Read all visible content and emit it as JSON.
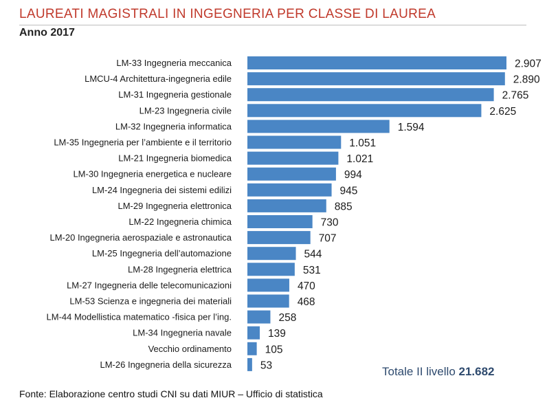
{
  "header": {
    "title": "LAUREATI MAGISTRALI IN INGEGNERIA PER CLASSE DI LAUREA",
    "subtitle": "Anno 2017"
  },
  "total": {
    "label": "Totale II livello",
    "value": "21.682"
  },
  "footer": {
    "source": "Fonte: Elaborazione centro studi CNI su dati MIUR – Ufficio di statistica"
  },
  "colors": {
    "title": "#c0392b",
    "bar": "#4a86c5",
    "total": "#2e4a6e"
  },
  "chart_data": {
    "type": "bar",
    "orientation": "horizontal",
    "title": "LAUREATI MAGISTRALI IN INGEGNERIA PER CLASSE DI LAUREA",
    "subtitle": "Anno 2017",
    "grid": false,
    "legend": "none",
    "xlim": [
      0,
      2907
    ],
    "categories": [
      "LM-33 Ingegneria meccanica",
      "LMCU-4 Architettura-ingegneria edile",
      "LM-31 Ingegneria gestionale",
      "LM-23 Ingegneria civile",
      "LM-32 Ingegneria informatica",
      "LM-35 Ingegneria per l’ambiente e il territorio",
      "LM-21 Ingegneria biomedica",
      "LM-30 Ingegneria energetica e nucleare",
      "LM-24 Ingegneria dei sistemi edilizi",
      "LM-29 Ingegneria elettronica",
      "LM-22 Ingegneria chimica",
      "LM-20 Ingegneria aerospaziale e astronautica",
      "LM-25 Ingegneria dell’automazione",
      "LM-28 Ingegneria elettrica",
      "LM-27 Ingegneria delle telecomunicazioni",
      "LM-53 Scienza e ingegneria dei materiali",
      "LM-44 Modellistica matematico    -fisica per l’ing.",
      "LM-34 Ingegneria navale",
      "Vecchio ordinamento",
      "LM-26 Ingegneria della sicurezza"
    ],
    "values": [
      2907,
      2890,
      2765,
      2625,
      1594,
      1051,
      1021,
      994,
      945,
      885,
      730,
      707,
      544,
      531,
      470,
      468,
      258,
      139,
      105,
      53
    ],
    "value_labels": [
      "2.907",
      "2.890",
      "2.765",
      "2.625",
      "1.594",
      "1.051",
      "1.021",
      "994",
      "945",
      "885",
      "730",
      "707",
      "544",
      "531",
      "470",
      "468",
      "258",
      "139",
      "105",
      "53"
    ]
  }
}
